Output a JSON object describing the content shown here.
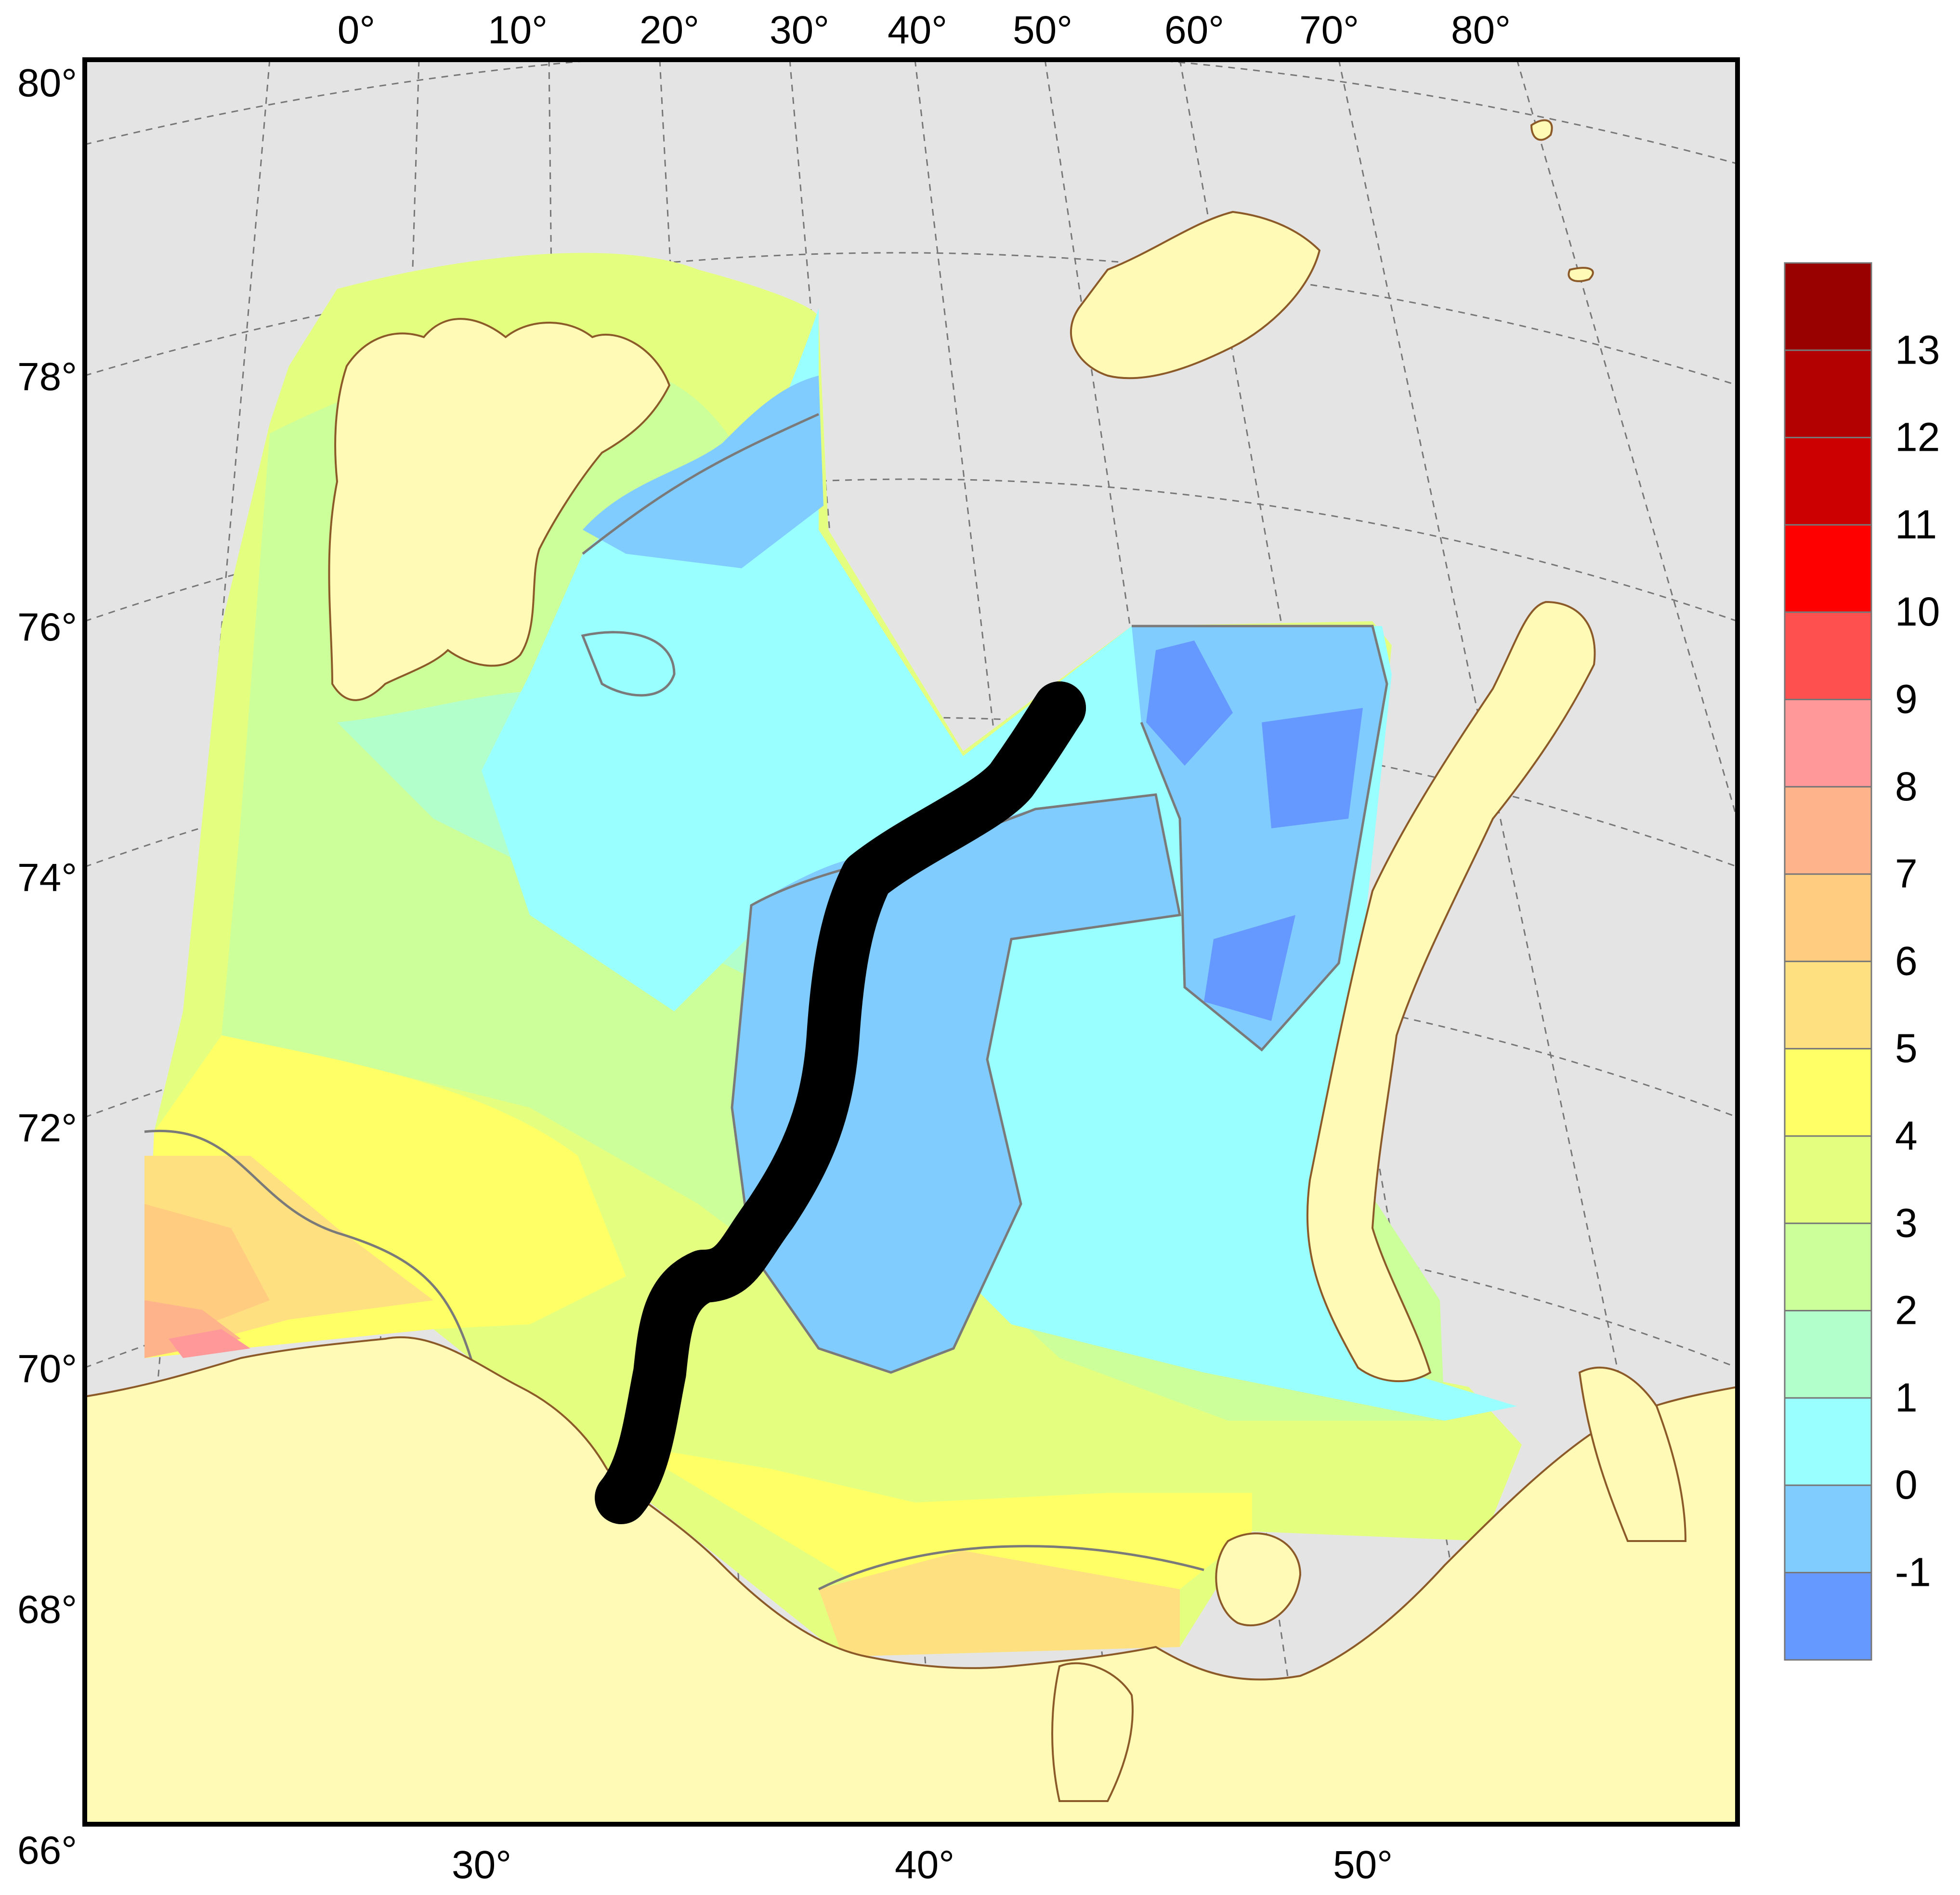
{
  "map": {
    "top_lon_labels": [
      "0°",
      "10°",
      "20°",
      "30°",
      "40°",
      "50°",
      "60°",
      "70°",
      "80°"
    ],
    "left_lat_labels": [
      "80°",
      "78°",
      "76°",
      "74°",
      "72°",
      "70°",
      "68°",
      "66°"
    ],
    "bottom_lon_labels": [
      "30°",
      "40°",
      "50°"
    ],
    "colors": {
      "background": "#e4e4e4",
      "land": "#fffbb6",
      "coast": "#8c5a28",
      "frame": "#000000",
      "grid": "#777777",
      "isoline": "#7a7a7a",
      "transect": "#000000"
    }
  },
  "legend": {
    "labels": [
      "13",
      "12",
      "11",
      "10",
      "9",
      "8",
      "7",
      "6",
      "5",
      "4",
      "3",
      "2",
      "1",
      "0",
      "-1"
    ],
    "colors": [
      "#990000",
      "#b30000",
      "#cc0000",
      "#ff0000",
      "#ff5050",
      "#ff9999",
      "#ffb38a",
      "#ffcc80",
      "#ffe080",
      "#ffff66",
      "#e4ff80",
      "#ccff99",
      "#b3ffcc",
      "#99ffff",
      "#80ccff",
      "#6699ff"
    ]
  }
}
